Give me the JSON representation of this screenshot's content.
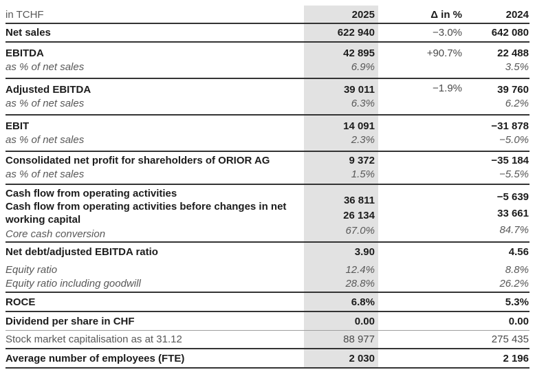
{
  "header": {
    "unit": "in TCHF",
    "col_2025": "2025",
    "col_delta": "Δ in %",
    "col_2024": "2024"
  },
  "rows": {
    "net_sales": {
      "label": "Net sales",
      "y2025": "622 940",
      "delta": "−3.0%",
      "y2024": "642 080"
    },
    "ebitda": {
      "label": "EBITDA",
      "y2025": "42 895",
      "delta": "+90.7%",
      "y2024": "22 488",
      "sub_label": "as % of net sales",
      "sub_2025": "6.9%",
      "sub_2024": "3.5%"
    },
    "adjusted_ebitda": {
      "label": "Adjusted EBITDA",
      "y2025": "39 011",
      "delta": "−1.9%",
      "y2024": "39 760",
      "sub_label": "as % of net sales",
      "sub_2025": "6.3%",
      "sub_2024": "6.2%"
    },
    "ebit": {
      "label": "EBIT",
      "y2025": "14 091",
      "y2024": "−31 878",
      "sub_label": "as % of net sales",
      "sub_2025": "2.3%",
      "sub_2024": "−5.0%"
    },
    "net_profit": {
      "label": "Consolidated net profit for shareholders of ORIOR AG",
      "y2025": "9 372",
      "y2024": "−35 184",
      "sub_label": "as % of net sales",
      "sub_2025": "1.5%",
      "sub_2024": "−5.5%"
    },
    "cash_flow": {
      "label_1": "Cash flow from operating activities",
      "label_2": "Cash flow from operating activities before changes in net working capital",
      "label_3": "Core cash conversion",
      "y2025_1": "36 811",
      "y2025_2": "26 134",
      "y2025_3": "67.0%",
      "y2024_1": "−5 639",
      "y2024_2": "33 661",
      "y2024_3": "84.7%"
    },
    "net_debt": {
      "label": "Net debt/adjusted EBITDA ratio",
      "y2025": "3.90",
      "y2024": "4.56",
      "sub1_label": "Equity ratio",
      "sub1_2025": "12.4%",
      "sub1_2024": "8.8%",
      "sub2_label": "Equity ratio including goodwill",
      "sub2_2025": "28.8%",
      "sub2_2024": "26.2%"
    },
    "roce": {
      "label": "ROCE",
      "y2025": "6.8%",
      "y2024": "5.3%"
    },
    "dividend": {
      "label": "Dividend per share in CHF",
      "y2025": "0.00",
      "y2024": "0.00"
    },
    "market_cap": {
      "label": "Stock market capitalisation as at 31.12",
      "y2025": "88 977",
      "y2024": "275 435"
    },
    "employees": {
      "label": "Average number of employees (FTE)",
      "y2025": "2 030",
      "y2024": "2 196"
    }
  },
  "colors": {
    "highlight_column": "#e2e2e2",
    "rule_dark": "#333333",
    "rule_light": "#9e9e9e",
    "text_primary": "#1c1c1c",
    "text_secondary": "#585858"
  },
  "chart_data": {
    "type": "table",
    "title": "in TCHF",
    "columns": [
      "in TCHF",
      "2025",
      "Δ in %",
      "2024"
    ],
    "rows": [
      [
        "Net sales",
        "622 940",
        "−3.0%",
        "642 080"
      ],
      [
        "EBITDA",
        "42 895",
        "+90.7%",
        "22 488"
      ],
      [
        "as % of net sales",
        "6.9%",
        "",
        "3.5%"
      ],
      [
        "Adjusted EBITDA",
        "39 011",
        "−1.9%",
        "39 760"
      ],
      [
        "as % of net sales",
        "6.3%",
        "",
        "6.2%"
      ],
      [
        "EBIT",
        "14 091",
        "",
        "−31 878"
      ],
      [
        "as % of net sales",
        "2.3%",
        "",
        "−5.0%"
      ],
      [
        "Consolidated net profit for shareholders of ORIOR AG",
        "9 372",
        "",
        "−35 184"
      ],
      [
        "as % of net sales",
        "1.5%",
        "",
        "−5.5%"
      ],
      [
        "Cash flow from operating activities",
        "36 811",
        "",
        "−5 639"
      ],
      [
        "Cash flow from operating activities before changes in net working capital",
        "26 134",
        "",
        "33 661"
      ],
      [
        "Core cash conversion",
        "67.0%",
        "",
        "84.7%"
      ],
      [
        "Net debt/adjusted EBITDA ratio",
        "3.90",
        "",
        "4.56"
      ],
      [
        "Equity ratio",
        "12.4%",
        "",
        "8.8%"
      ],
      [
        "Equity ratio including goodwill",
        "28.8%",
        "",
        "26.2%"
      ],
      [
        "ROCE",
        "6.8%",
        "",
        "5.3%"
      ],
      [
        "Dividend per share in CHF",
        "0.00",
        "",
        "0.00"
      ],
      [
        "Stock market capitalisation as at 31.12",
        "88 977",
        "",
        "275 435"
      ],
      [
        "Average number of employees (FTE)",
        "2 030",
        "",
        "2 196"
      ]
    ]
  }
}
